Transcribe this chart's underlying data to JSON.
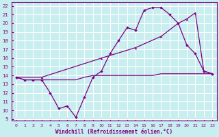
{
  "xlabel": "Windchill (Refroidissement éolien,°C)",
  "bg_color": "#c8eef0",
  "grid_color": "#ffffff",
  "line_color": "#800080",
  "ylim": [
    8.8,
    22.4
  ],
  "xlim": [
    -0.5,
    23.5
  ],
  "yticks": [
    9,
    10,
    11,
    12,
    13,
    14,
    15,
    16,
    17,
    18,
    19,
    20,
    21,
    22
  ],
  "xticks": [
    0,
    1,
    2,
    3,
    4,
    5,
    6,
    7,
    8,
    9,
    10,
    11,
    12,
    13,
    14,
    15,
    16,
    17,
    18,
    19,
    20,
    21,
    22,
    23
  ],
  "line1_x": [
    0,
    1,
    2,
    3,
    4,
    5,
    6,
    7,
    8,
    9,
    10,
    11,
    12,
    13,
    14,
    15,
    16,
    17,
    18,
    19,
    20,
    21,
    22,
    23
  ],
  "line1_y": [
    13.8,
    13.5,
    13.5,
    13.5,
    13.5,
    13.5,
    13.5,
    13.5,
    13.8,
    14.0,
    14.0,
    14.0,
    14.0,
    14.0,
    14.0,
    14.0,
    14.0,
    14.2,
    14.2,
    14.2,
    14.2,
    14.2,
    14.2,
    14.2
  ],
  "line2_x": [
    0,
    1,
    2,
    3,
    4,
    5,
    6,
    7,
    8,
    9,
    10,
    11,
    12,
    13,
    14,
    15,
    16,
    17,
    18,
    19,
    20,
    21,
    22,
    23
  ],
  "line2_y": [
    13.8,
    13.5,
    13.5,
    13.5,
    12.0,
    10.2,
    10.5,
    9.2,
    11.5,
    13.8,
    14.5,
    16.5,
    18.0,
    19.5,
    19.2,
    21.5,
    21.8,
    21.8,
    21.0,
    20.0,
    17.5,
    16.5,
    14.5,
    14.2
  ],
  "line3_x": [
    0,
    3,
    10,
    14,
    17,
    19,
    20,
    21,
    22,
    23
  ],
  "line3_y": [
    13.8,
    13.8,
    16.0,
    17.2,
    18.5,
    20.0,
    20.5,
    21.2,
    14.5,
    14.2
  ]
}
